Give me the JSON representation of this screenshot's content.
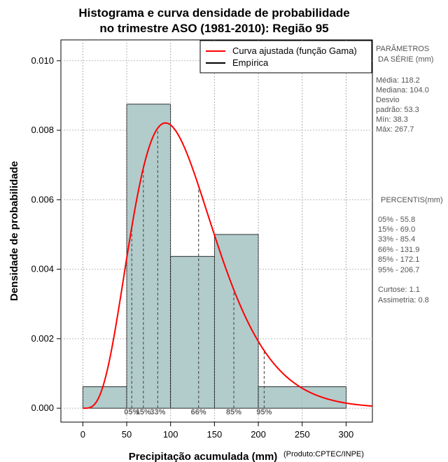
{
  "chart_data": {
    "type": "histogram",
    "title": [
      "Histograma e curva densidade de probabilidade",
      "no trimestre ASO (1981-2010): Região 95"
    ],
    "xlabel": "Precipitação acumulada (mm)",
    "ylabel": "Densidade de probabilidade",
    "credit": "(Produto:CPTEC/INPE)",
    "xlim": [
      -25,
      330
    ],
    "ylim": [
      -0.0004,
      0.0106
    ],
    "xticks": [
      0,
      50,
      100,
      150,
      200,
      250,
      300
    ],
    "yticks": [
      0.0,
      0.002,
      0.004,
      0.006,
      0.008,
      0.01
    ],
    "ytick_labels": [
      "0.000",
      "0.002",
      "0.004",
      "0.006",
      "0.008",
      "0.010"
    ],
    "grid": true,
    "histogram": {
      "name": "Empírica",
      "bins": [
        {
          "x0": 0,
          "x1": 50,
          "density": 0.00062
        },
        {
          "x0": 50,
          "x1": 100,
          "density": 0.00875
        },
        {
          "x0": 100,
          "x1": 150,
          "density": 0.00437
        },
        {
          "x0": 150,
          "x1": 200,
          "density": 0.005
        },
        {
          "x0": 200,
          "x1": 300,
          "density": 0.00062
        }
      ],
      "color": "#b2cccc"
    },
    "curve": {
      "name": "Curva ajustada (função Gama)",
      "distribution": "gamma",
      "mean": 118.2,
      "sd": 53.3,
      "color": "#ff0000"
    },
    "percentiles": [
      {
        "label": "05%",
        "value": 55.8
      },
      {
        "label": "15%",
        "value": 69.0
      },
      {
        "label": "33%",
        "value": 85.4
      },
      {
        "label": "66%",
        "value": 131.9
      },
      {
        "label": "85%",
        "value": 172.1
      },
      {
        "label": "95%",
        "value": 206.7
      }
    ],
    "legend": [
      {
        "label": "Curva ajustada (função Gama)",
        "color": "#ff0000"
      },
      {
        "label": "Empírica",
        "color": "#000000"
      }
    ],
    "legend_position": "top-right"
  },
  "side_panel": {
    "params_header": [
      "PARÂMETROS",
      "DA SÉRIE (mm)"
    ],
    "params": [
      "Média:  118.2",
      "Mediana:  104.0",
      "Desvio",
      "padrão:  53.3",
      "Mín:  38.3",
      "Máx:  267.7"
    ],
    "percentis_header": "PERCENTIS(mm)",
    "percentis": [
      "05% -   55.8",
      "15% -   69.0",
      "33% -   85.4",
      "66% -   131.9",
      "85% -   172.1",
      "95% -   206.7"
    ],
    "stats": [
      "Curtose:  1.1",
      "Assimetria:  0.8"
    ]
  }
}
